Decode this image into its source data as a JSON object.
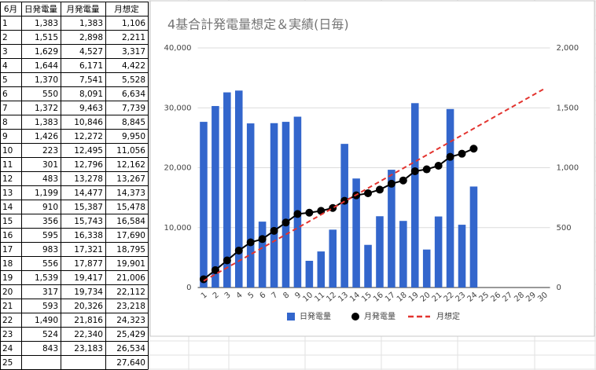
{
  "table": {
    "header": [
      "6月",
      "日発電量",
      "月発電量",
      "月想定"
    ],
    "rows": [
      [
        "1",
        "1,383",
        "1,383",
        "1,106"
      ],
      [
        "2",
        "1,515",
        "2,898",
        "2,211"
      ],
      [
        "3",
        "1,629",
        "4,527",
        "3,317"
      ],
      [
        "4",
        "1,644",
        "6,171",
        "4,422"
      ],
      [
        "5",
        "1,370",
        "7,541",
        "5,528"
      ],
      [
        "6",
        "550",
        "8,091",
        "6,634"
      ],
      [
        "7",
        "1,372",
        "9,463",
        "7,739"
      ],
      [
        "8",
        "1,383",
        "10,846",
        "8,845"
      ],
      [
        "9",
        "1,426",
        "12,272",
        "9,950"
      ],
      [
        "10",
        "223",
        "12,495",
        "11,056"
      ],
      [
        "11",
        "301",
        "12,796",
        "12,162"
      ],
      [
        "12",
        "483",
        "13,278",
        "13,267"
      ],
      [
        "13",
        "1,199",
        "14,477",
        "14,373"
      ],
      [
        "14",
        "910",
        "15,387",
        "15,478"
      ],
      [
        "15",
        "356",
        "15,743",
        "16,584"
      ],
      [
        "16",
        "595",
        "16,338",
        "17,690"
      ],
      [
        "17",
        "983",
        "17,321",
        "18,795"
      ],
      [
        "18",
        "556",
        "17,877",
        "19,901"
      ],
      [
        "19",
        "1,539",
        "19,417",
        "21,006"
      ],
      [
        "20",
        "317",
        "19,734",
        "22,112"
      ],
      [
        "21",
        "593",
        "20,326",
        "23,218"
      ],
      [
        "22",
        "1,490",
        "21,816",
        "24,323"
      ],
      [
        "23",
        "524",
        "22,340",
        "25,429"
      ],
      [
        "24",
        "843",
        "23,183",
        "26,534"
      ],
      [
        "25",
        null,
        null,
        "27,640"
      ]
    ]
  },
  "chart_data": {
    "type": "combo",
    "title": "4基合計発電量想定＆実績(日毎)",
    "categories": [
      "1",
      "2",
      "3",
      "4",
      "5",
      "6",
      "7",
      "8",
      "9",
      "10",
      "11",
      "12",
      "13",
      "14",
      "15",
      "16",
      "17",
      "18",
      "19",
      "20",
      "21",
      "22",
      "23",
      "24",
      "25",
      "26",
      "27",
      "28",
      "29",
      "30"
    ],
    "series": [
      {
        "name": "日発電量",
        "kind": "bar",
        "axis": "y2",
        "color": "#3366cc",
        "values": [
          1383,
          1515,
          1629,
          1644,
          1370,
          550,
          1372,
          1383,
          1426,
          223,
          301,
          483,
          1199,
          910,
          356,
          595,
          983,
          556,
          1539,
          317,
          593,
          1490,
          524,
          843,
          null,
          null,
          null,
          null,
          null,
          null
        ]
      },
      {
        "name": "月発電量",
        "kind": "line",
        "marker": true,
        "dashed": false,
        "color": "#000000",
        "values": [
          1383,
          2898,
          4527,
          6171,
          7541,
          8091,
          9463,
          10846,
          12272,
          12495,
          12796,
          13278,
          14477,
          15387,
          15743,
          16338,
          17321,
          17877,
          19417,
          19734,
          20326,
          21816,
          22340,
          23183,
          null,
          null,
          null,
          null,
          null,
          null
        ]
      },
      {
        "name": "月想定",
        "kind": "line",
        "marker": false,
        "dashed": true,
        "color": "#e3342f",
        "values": [
          1106,
          2211,
          3317,
          4422,
          5528,
          6634,
          7739,
          8845,
          9950,
          11056,
          12162,
          13267,
          14373,
          15478,
          16584,
          17690,
          18795,
          19901,
          21006,
          22112,
          23218,
          24323,
          25429,
          26534,
          27640,
          28746,
          29851,
          30957,
          32063,
          33169
        ]
      }
    ],
    "ylim": [
      0,
      40000
    ],
    "yticks": [
      0,
      {
        "value": 10000,
        "label": "10,000"
      },
      {
        "value": 20000,
        "label": "20,000"
      },
      {
        "value": 30000,
        "label": "30,000"
      },
      {
        "value": 40000,
        "label": "40,000"
      }
    ],
    "y2lim": [
      0,
      2000
    ],
    "y2ticks": [
      0,
      500,
      {
        "value": 1000,
        "label": "1,000"
      },
      {
        "value": 1500,
        "label": "1,500"
      },
      {
        "value": 2000,
        "label": "2,000"
      }
    ],
    "grid": true,
    "legend": "bottom"
  }
}
